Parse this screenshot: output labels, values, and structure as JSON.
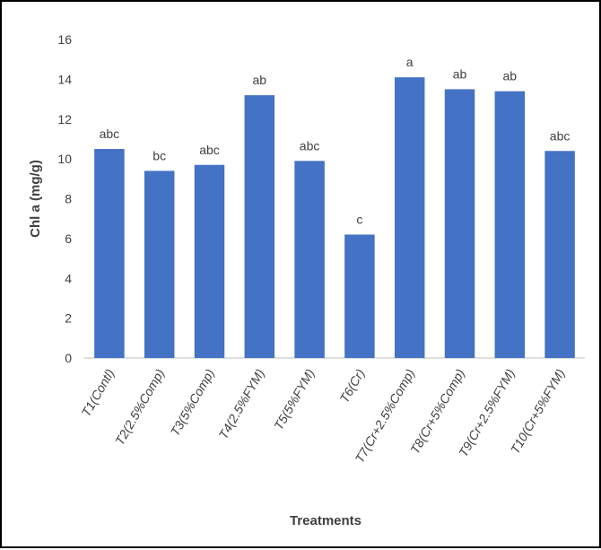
{
  "chart_data": {
    "type": "bar",
    "title": "",
    "xlabel": "Treatments",
    "ylabel": "Chl a (mg/g)",
    "ylim": [
      0,
      16
    ],
    "yticks": [
      0,
      2,
      4,
      6,
      8,
      10,
      12,
      14,
      16
    ],
    "grid": false,
    "legend": "none",
    "bar_color": "#4472C4",
    "categories": [
      "T1(Contl)",
      "T2(2.5%Comp)",
      "T3(5%Comp)",
      "T4(2.5%FYM)",
      "T5(5%FYM)",
      "T6(Cr)",
      "T7(Cr+2.5%Comp)",
      "T8(Cr+5%Comp)",
      "T9(Cr+2.5%FYM)",
      "T10(Cr+5%FYM)"
    ],
    "values": [
      10.5,
      9.4,
      9.7,
      13.2,
      9.9,
      6.2,
      14.1,
      13.5,
      13.4,
      10.4
    ],
    "data_labels": [
      "abc",
      "bc",
      "abc",
      "ab",
      "abc",
      "c",
      "a",
      "ab",
      "ab",
      "abc"
    ]
  }
}
